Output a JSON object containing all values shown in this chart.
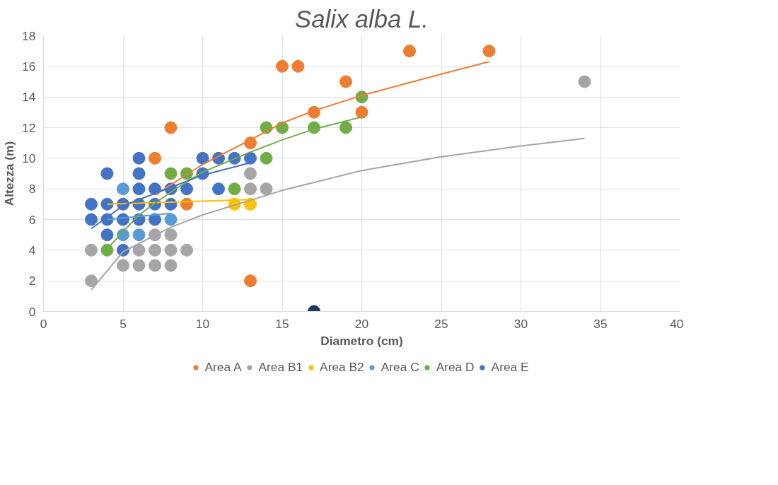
{
  "chart_data": {
    "type": "scatter",
    "title": "Salix alba L.",
    "xlabel": "Diametro (cm)",
    "ylabel": "Altezza (m)",
    "xlim": [
      0,
      40
    ],
    "ylim": [
      0,
      18
    ],
    "xticks": [
      0,
      5,
      10,
      15,
      20,
      25,
      30,
      35,
      40
    ],
    "yticks": [
      0,
      2,
      4,
      6,
      8,
      10,
      12,
      14,
      16,
      18
    ],
    "grid": true,
    "legend": "bottom",
    "marker": "circle",
    "series": [
      {
        "name": "Area A",
        "color": "#ed7d31",
        "x": [
          7,
          8,
          9,
          13,
          13,
          15,
          16,
          17,
          19,
          20,
          23,
          28
        ],
        "values": [
          10,
          12,
          7,
          11,
          2,
          16,
          16,
          13,
          15,
          13,
          17,
          17
        ]
      },
      {
        "name": "Area B1",
        "color": "#a5a5a5",
        "x": [
          3,
          3,
          5,
          6,
          6,
          7,
          7,
          7,
          8,
          8,
          8,
          9,
          13,
          13,
          14,
          34
        ],
        "values": [
          2,
          4,
          3,
          3,
          4,
          3,
          4,
          5,
          3,
          4,
          5,
          4,
          8,
          9,
          8,
          15
        ]
      },
      {
        "name": "Area B2",
        "color": "#ffc000",
        "x": [
          12,
          13
        ],
        "values": [
          7,
          7
        ]
      },
      {
        "name": "Area C",
        "color": "#5b9bd5",
        "x": [
          5,
          5,
          6,
          8
        ],
        "values": [
          8,
          5,
          5,
          6
        ]
      },
      {
        "name": "Area D",
        "color": "#70ad47",
        "x": [
          4,
          8,
          9,
          12,
          14,
          14,
          15,
          17,
          19,
          20
        ],
        "values": [
          4,
          9,
          9,
          8,
          10,
          12,
          12,
          12,
          12,
          14
        ]
      },
      {
        "name": "Area E",
        "color": "#4472c4",
        "x": [
          3,
          3,
          4,
          4,
          4,
          4,
          5,
          5,
          5,
          6,
          6,
          6,
          6,
          6,
          7,
          7,
          7,
          8,
          8,
          9,
          10,
          10,
          11,
          11,
          12,
          13
        ],
        "values": [
          6,
          7,
          5,
          6,
          7,
          9,
          4,
          6,
          7,
          6,
          7,
          8,
          9,
          10,
          6,
          7,
          8,
          7,
          8,
          8,
          9,
          10,
          8,
          10,
          10,
          10
        ]
      },
      {
        "color": "#203864",
        "x": [
          17
        ],
        "values": [
          0
        ]
      },
      {
        "type": "line",
        "marker": "none",
        "color": "#ed7d31",
        "x": [
          7,
          10,
          13,
          15,
          17,
          20,
          25,
          28
        ],
        "values": [
          7.6,
          9.6,
          11.2,
          12.3,
          13.1,
          14.1,
          15.5,
          16.3
        ]
      },
      {
        "type": "line",
        "marker": "none",
        "color": "#a5a5a5",
        "x": [
          3,
          5,
          8,
          10,
          15,
          20,
          25,
          30,
          34
        ],
        "values": [
          1.4,
          3.9,
          5.5,
          6.3,
          7.9,
          9.2,
          10.1,
          10.8,
          11.3
        ]
      },
      {
        "type": "line",
        "marker": "none",
        "color": "#ffc000",
        "x": [
          4,
          13
        ],
        "values": [
          7.0,
          7.3
        ]
      },
      {
        "type": "line",
        "marker": "none",
        "color": "#5b9bd5",
        "x": [
          4,
          8
        ],
        "values": [
          6.0,
          6.4
        ]
      },
      {
        "type": "line",
        "marker": "none",
        "color": "#70ad47",
        "x": [
          4,
          6,
          8,
          10,
          13,
          15,
          17,
          20
        ],
        "values": [
          4.1,
          6.3,
          7.8,
          9.1,
          10.4,
          11.2,
          11.9,
          12.7
        ]
      },
      {
        "type": "line",
        "marker": "none",
        "color": "#4472c4",
        "x": [
          3,
          5,
          8,
          10,
          13
        ],
        "values": [
          5.4,
          6.9,
          8.1,
          8.9,
          9.7
        ]
      }
    ]
  }
}
